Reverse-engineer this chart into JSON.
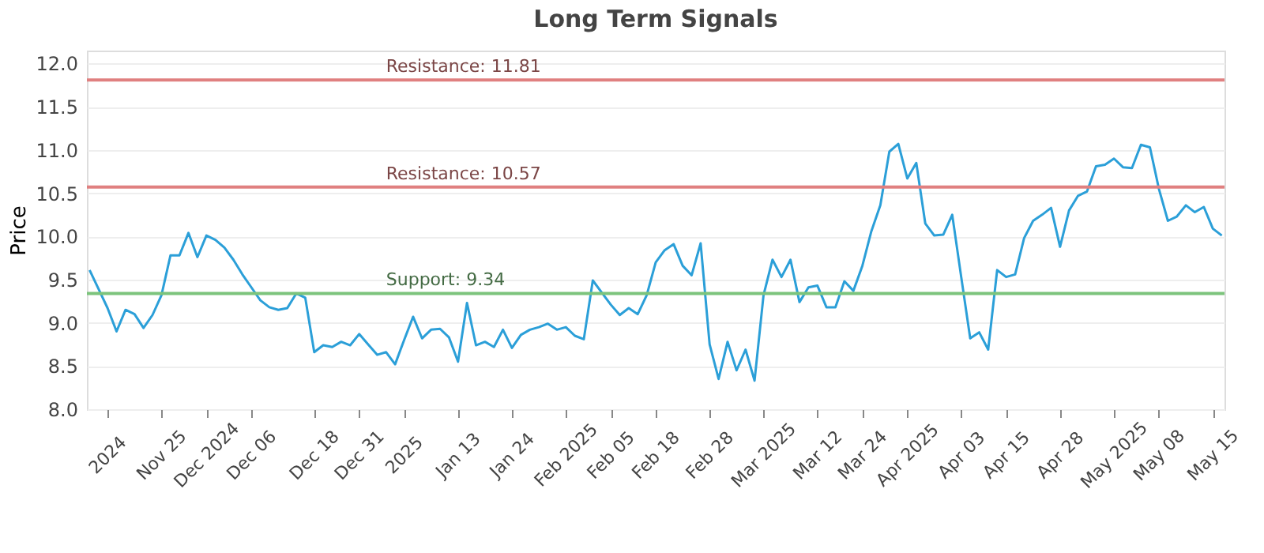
{
  "chart_data": {
    "type": "line",
    "title": "Long Term Signals",
    "ylabel": "Price",
    "categories": [
      null,
      null,
      "2024",
      null,
      null,
      null,
      null,
      null,
      "Nov 25",
      null,
      null,
      null,
      null,
      "Dec 2024",
      null,
      null,
      null,
      null,
      "Dec 06",
      null,
      null,
      null,
      null,
      null,
      null,
      "Dec 18",
      null,
      null,
      null,
      null,
      "Dec 31",
      null,
      null,
      null,
      null,
      "2025",
      null,
      null,
      null,
      null,
      null,
      "Jan 13",
      null,
      null,
      null,
      null,
      null,
      "Jan 24",
      null,
      null,
      null,
      null,
      null,
      "Feb 2025",
      null,
      null,
      null,
      null,
      "Feb 05",
      null,
      null,
      null,
      null,
      "Feb 18",
      null,
      null,
      null,
      null,
      null,
      "Feb 28",
      null,
      null,
      null,
      null,
      null,
      "Mar 2025",
      null,
      null,
      null,
      null,
      null,
      "Mar 12",
      null,
      null,
      null,
      null,
      "Mar 24",
      null,
      null,
      null,
      null,
      "Apr 2025",
      null,
      null,
      null,
      null,
      null,
      "Apr 03",
      null,
      null,
      null,
      null,
      "Apr 15",
      null,
      null,
      null,
      null,
      null,
      "Apr 28",
      null,
      null,
      null,
      null,
      null,
      "May 2025",
      null,
      null,
      null,
      null,
      "May 08",
      null,
      null,
      null,
      null,
      null,
      "May 15",
      null
    ],
    "series": [
      {
        "color": "#2b9fd8",
        "values": [
          9.61,
          9.39,
          9.17,
          8.9,
          9.15,
          9.1,
          8.94,
          9.09,
          9.32,
          9.78,
          9.78,
          10.04,
          9.76,
          10.01,
          9.96,
          9.87,
          9.73,
          9.56,
          9.41,
          9.26,
          9.18,
          9.15,
          9.17,
          9.34,
          9.29,
          8.66,
          8.74,
          8.72,
          8.78,
          8.74,
          8.87,
          8.75,
          8.63,
          8.66,
          8.52,
          8.8,
          9.07,
          8.82,
          8.92,
          8.93,
          8.83,
          8.55,
          9.23,
          8.74,
          8.78,
          8.72,
          8.92,
          8.71,
          8.86,
          8.92,
          8.95,
          8.99,
          8.92,
          8.95,
          8.85,
          8.81,
          9.49,
          9.35,
          9.21,
          9.09,
          9.17,
          9.1,
          9.32,
          9.7,
          9.84,
          9.91,
          9.66,
          9.55,
          9.92,
          8.75,
          8.35,
          8.78,
          8.45,
          8.69,
          8.33,
          9.32,
          9.73,
          9.53,
          9.73,
          9.24,
          9.41,
          9.43,
          9.18,
          9.18,
          9.48,
          9.37,
          9.66,
          10.06,
          10.36,
          10.98,
          11.07,
          10.67,
          10.85,
          10.15,
          10.01,
          10.02,
          10.25,
          9.53,
          8.82,
          8.89,
          8.69,
          9.61,
          9.53,
          9.56,
          9.98,
          10.18,
          10.25,
          10.33,
          9.88,
          10.3,
          10.47,
          10.52,
          10.81,
          10.83,
          10.9,
          10.8,
          10.79,
          11.06,
          11.03,
          10.55,
          10.18,
          10.23,
          10.36,
          10.28,
          10.34,
          10.09,
          10.01
        ]
      }
    ],
    "ylim": [
      8,
      12.15
    ],
    "yticks": [
      {
        "value": 8,
        "label": "8.0"
      },
      {
        "value": 8.5,
        "label": "8.5"
      },
      {
        "value": 9,
        "label": "9.0"
      },
      {
        "value": 9.5,
        "label": "9.5"
      },
      {
        "value": 10,
        "label": "10.0"
      },
      {
        "value": 10.5,
        "label": "10.5"
      },
      {
        "value": 11,
        "label": "11.0"
      },
      {
        "value": 11.5,
        "label": "11.5"
      },
      {
        "value": 12,
        "label": "12.0"
      }
    ],
    "ref_lines": [
      {
        "axis": "y",
        "value": 11.81,
        "label": "Resistance: 11.81",
        "color": "#e08080"
      },
      {
        "axis": "y",
        "value": 10.57,
        "label": "Resistance: 10.57",
        "color": "#e08080"
      },
      {
        "axis": "y",
        "value": 9.34,
        "label": "Support: 9.34",
        "color": "#7cc47c"
      }
    ],
    "grid": "y",
    "marker": "none",
    "line_style": "solid"
  }
}
